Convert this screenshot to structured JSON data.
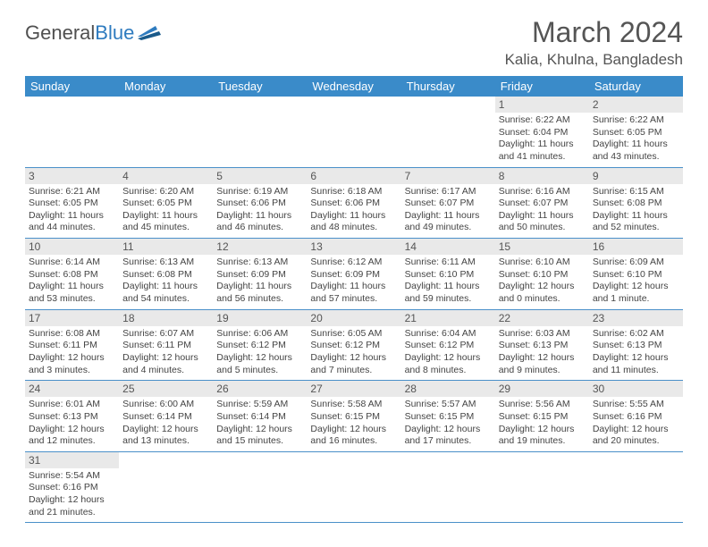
{
  "logo": {
    "text1": "General",
    "text2": "Blue"
  },
  "title": "March 2024",
  "location": "Kalia, Khulna, Bangladesh",
  "colors": {
    "header_bg": "#3a8bc9",
    "header_text": "#ffffff",
    "daynum_bg": "#e9e9e9",
    "border": "#4a90c9",
    "text": "#444444",
    "logo_gray": "#505050",
    "logo_blue": "#2e7bbf"
  },
  "weekdays": [
    "Sunday",
    "Monday",
    "Tuesday",
    "Wednesday",
    "Thursday",
    "Friday",
    "Saturday"
  ],
  "weeks": [
    [
      null,
      null,
      null,
      null,
      null,
      {
        "n": "1",
        "sr": "6:22 AM",
        "ss": "6:04 PM",
        "dl": "11 hours and 41 minutes."
      },
      {
        "n": "2",
        "sr": "6:22 AM",
        "ss": "6:05 PM",
        "dl": "11 hours and 43 minutes."
      }
    ],
    [
      {
        "n": "3",
        "sr": "6:21 AM",
        "ss": "6:05 PM",
        "dl": "11 hours and 44 minutes."
      },
      {
        "n": "4",
        "sr": "6:20 AM",
        "ss": "6:05 PM",
        "dl": "11 hours and 45 minutes."
      },
      {
        "n": "5",
        "sr": "6:19 AM",
        "ss": "6:06 PM",
        "dl": "11 hours and 46 minutes."
      },
      {
        "n": "6",
        "sr": "6:18 AM",
        "ss": "6:06 PM",
        "dl": "11 hours and 48 minutes."
      },
      {
        "n": "7",
        "sr": "6:17 AM",
        "ss": "6:07 PM",
        "dl": "11 hours and 49 minutes."
      },
      {
        "n": "8",
        "sr": "6:16 AM",
        "ss": "6:07 PM",
        "dl": "11 hours and 50 minutes."
      },
      {
        "n": "9",
        "sr": "6:15 AM",
        "ss": "6:08 PM",
        "dl": "11 hours and 52 minutes."
      }
    ],
    [
      {
        "n": "10",
        "sr": "6:14 AM",
        "ss": "6:08 PM",
        "dl": "11 hours and 53 minutes."
      },
      {
        "n": "11",
        "sr": "6:13 AM",
        "ss": "6:08 PM",
        "dl": "11 hours and 54 minutes."
      },
      {
        "n": "12",
        "sr": "6:13 AM",
        "ss": "6:09 PM",
        "dl": "11 hours and 56 minutes."
      },
      {
        "n": "13",
        "sr": "6:12 AM",
        "ss": "6:09 PM",
        "dl": "11 hours and 57 minutes."
      },
      {
        "n": "14",
        "sr": "6:11 AM",
        "ss": "6:10 PM",
        "dl": "11 hours and 59 minutes."
      },
      {
        "n": "15",
        "sr": "6:10 AM",
        "ss": "6:10 PM",
        "dl": "12 hours and 0 minutes."
      },
      {
        "n": "16",
        "sr": "6:09 AM",
        "ss": "6:10 PM",
        "dl": "12 hours and 1 minute."
      }
    ],
    [
      {
        "n": "17",
        "sr": "6:08 AM",
        "ss": "6:11 PM",
        "dl": "12 hours and 3 minutes."
      },
      {
        "n": "18",
        "sr": "6:07 AM",
        "ss": "6:11 PM",
        "dl": "12 hours and 4 minutes."
      },
      {
        "n": "19",
        "sr": "6:06 AM",
        "ss": "6:12 PM",
        "dl": "12 hours and 5 minutes."
      },
      {
        "n": "20",
        "sr": "6:05 AM",
        "ss": "6:12 PM",
        "dl": "12 hours and 7 minutes."
      },
      {
        "n": "21",
        "sr": "6:04 AM",
        "ss": "6:12 PM",
        "dl": "12 hours and 8 minutes."
      },
      {
        "n": "22",
        "sr": "6:03 AM",
        "ss": "6:13 PM",
        "dl": "12 hours and 9 minutes."
      },
      {
        "n": "23",
        "sr": "6:02 AM",
        "ss": "6:13 PM",
        "dl": "12 hours and 11 minutes."
      }
    ],
    [
      {
        "n": "24",
        "sr": "6:01 AM",
        "ss": "6:13 PM",
        "dl": "12 hours and 12 minutes."
      },
      {
        "n": "25",
        "sr": "6:00 AM",
        "ss": "6:14 PM",
        "dl": "12 hours and 13 minutes."
      },
      {
        "n": "26",
        "sr": "5:59 AM",
        "ss": "6:14 PM",
        "dl": "12 hours and 15 minutes."
      },
      {
        "n": "27",
        "sr": "5:58 AM",
        "ss": "6:15 PM",
        "dl": "12 hours and 16 minutes."
      },
      {
        "n": "28",
        "sr": "5:57 AM",
        "ss": "6:15 PM",
        "dl": "12 hours and 17 minutes."
      },
      {
        "n": "29",
        "sr": "5:56 AM",
        "ss": "6:15 PM",
        "dl": "12 hours and 19 minutes."
      },
      {
        "n": "30",
        "sr": "5:55 AM",
        "ss": "6:16 PM",
        "dl": "12 hours and 20 minutes."
      }
    ],
    [
      {
        "n": "31",
        "sr": "5:54 AM",
        "ss": "6:16 PM",
        "dl": "12 hours and 21 minutes."
      },
      null,
      null,
      null,
      null,
      null,
      null
    ]
  ],
  "labels": {
    "sunrise": "Sunrise: ",
    "sunset": "Sunset: ",
    "daylight": "Daylight: "
  }
}
